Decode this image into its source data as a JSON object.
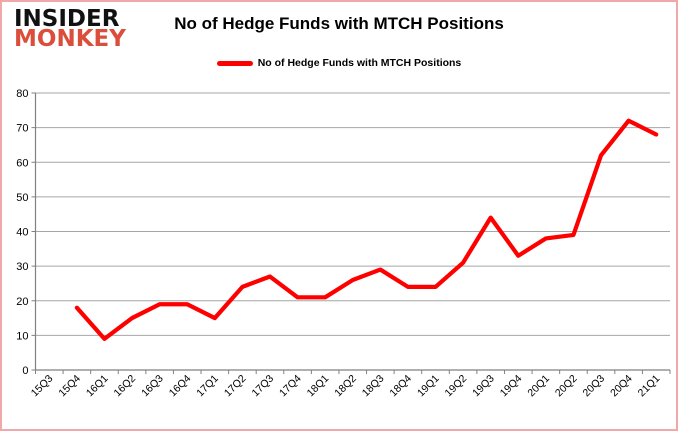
{
  "brand": {
    "line1": "INSIDER",
    "line2": "MONKEY",
    "accent_color": "#db4e3c"
  },
  "header": {
    "title": "No of Hedge Funds with MTCH Positions"
  },
  "legend": {
    "label": "No of Hedge Funds with MTCH Positions",
    "marker_color": "#ff0000"
  },
  "chart_data": {
    "type": "line",
    "title": "No of Hedge Funds with MTCH Positions",
    "series_name": "No of Hedge Funds with MTCH Positions",
    "categories": [
      "15Q3",
      "15Q4",
      "16Q1",
      "16Q2",
      "16Q3",
      "16Q4",
      "17Q1",
      "17Q2",
      "17Q3",
      "17Q4",
      "18Q1",
      "18Q2",
      "18Q3",
      "18Q4",
      "19Q1",
      "19Q2",
      "19Q3",
      "19Q4",
      "20Q1",
      "20Q2",
      "20Q3",
      "20Q4",
      "21Q1"
    ],
    "values": [
      null,
      18,
      9,
      15,
      19,
      19,
      15,
      24,
      27,
      21,
      21,
      26,
      29,
      24,
      24,
      31,
      44,
      33,
      38,
      39,
      62,
      72,
      68
    ],
    "ylim": [
      0,
      80
    ],
    "ytick_step": 10,
    "grid": true,
    "legend_position": "top",
    "line_color": "#ff0000",
    "gridline_color": "#a6a6a6",
    "axis_color": "#808080"
  }
}
